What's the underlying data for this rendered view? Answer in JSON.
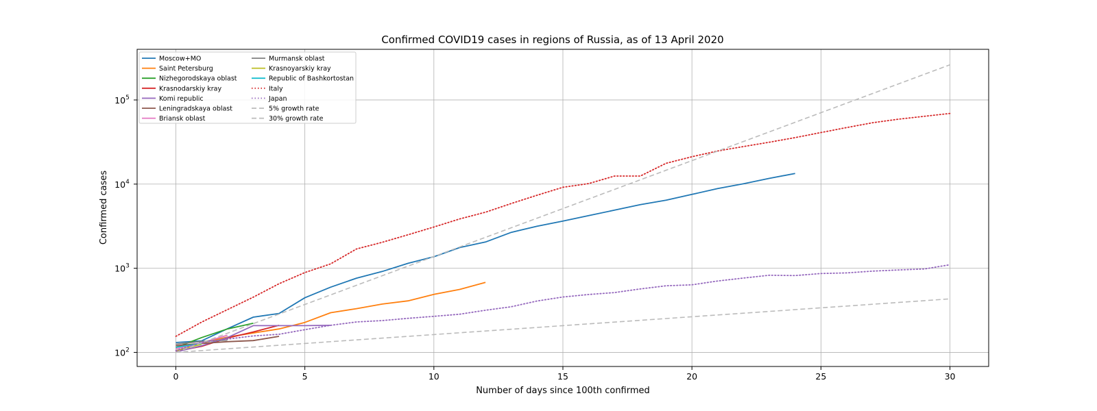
{
  "chart_data": {
    "type": "line",
    "title": "Confirmed COVID19 cases in regions of Russia, as of 13 April 2020",
    "xlabel": "Number of days since 100th confirmed",
    "ylabel": "Confirmed cases",
    "xlim": [
      -1.5,
      31.5
    ],
    "ylim": [
      68,
      400000
    ],
    "yscale": "log",
    "grid": true,
    "legend_position": "top-left",
    "legend_columns": 2,
    "x_ticks": [
      {
        "value": 0,
        "label": "0"
      },
      {
        "value": 5,
        "label": "5"
      },
      {
        "value": 10,
        "label": "10"
      },
      {
        "value": 15,
        "label": "15"
      },
      {
        "value": 20,
        "label": "20"
      },
      {
        "value": 25,
        "label": "25"
      },
      {
        "value": 30,
        "label": "30"
      }
    ],
    "y_ticks": [
      {
        "value": 100,
        "base": "10",
        "exp": "2"
      },
      {
        "value": 1000,
        "base": "10",
        "exp": "3"
      },
      {
        "value": 10000,
        "base": "10",
        "exp": "4"
      },
      {
        "value": 100000,
        "base": "10",
        "exp": "5"
      }
    ],
    "series": [
      {
        "name": "Moscow+MO",
        "color": "#1f77b4",
        "style": "solid",
        "x": [
          0,
          1,
          2,
          3,
          4,
          5,
          6,
          7,
          8,
          9,
          10,
          11,
          12,
          13,
          14,
          15,
          16,
          17,
          18,
          19,
          20,
          21,
          22,
          23,
          24
        ],
        "y": [
          131,
          137,
          191,
          262,
          290,
          446,
          596,
          762,
          916,
          1145,
          1370,
          1760,
          2050,
          2670,
          3160,
          3640,
          4220,
          4900,
          5700,
          6430,
          7540,
          8850,
          10100,
          11700,
          13400
        ]
      },
      {
        "name": "Saint Petersburg",
        "color": "#ff7f0e",
        "style": "solid",
        "x": [
          0,
          1,
          2,
          3,
          4,
          5,
          6,
          7,
          8,
          9,
          10,
          11,
          12
        ],
        "y": [
          102,
          130,
          152,
          170,
          190,
          227,
          296,
          331,
          375,
          410,
          490,
          560,
          680
        ]
      },
      {
        "name": "Nizhegorodskaya oblast",
        "color": "#2ca02c",
        "style": "solid",
        "x": [
          0,
          1,
          2,
          3
        ],
        "y": [
          114,
          150,
          190,
          222
        ]
      },
      {
        "name": "Krasnodarskiy kray",
        "color": "#d62728",
        "style": "solid",
        "x": [
          0,
          1,
          2,
          3,
          4
        ],
        "y": [
          103,
          118,
          148,
          175,
          210
        ]
      },
      {
        "name": "Komi republic",
        "color": "#9467bd",
        "style": "solid",
        "x": [
          0,
          1,
          2,
          3,
          4,
          5,
          6
        ],
        "y": [
          101,
          120,
          150,
          208,
          208,
          208,
          210
        ]
      },
      {
        "name": "Leningradskaya oblast",
        "color": "#8c564b",
        "style": "solid",
        "x": [
          0,
          1,
          2,
          3,
          4
        ],
        "y": [
          120,
          128,
          134,
          138,
          155
        ]
      },
      {
        "name": "Briansk oblast",
        "color": "#e377c2",
        "style": "solid",
        "x": [
          0,
          1,
          2
        ],
        "y": [
          110,
          130,
          160
        ]
      },
      {
        "name": "Murmansk oblast",
        "color": "#7f7f7f",
        "style": "solid",
        "x": [
          0,
          1,
          2
        ],
        "y": [
          125,
          135,
          140
        ]
      },
      {
        "name": "Krasnoyarskiy kray",
        "color": "#bcbd22",
        "style": "solid",
        "x": [
          0,
          1
        ],
        "y": [
          105,
          125
        ]
      },
      {
        "name": "Republic of Bashkortostan",
        "color": "#17becf",
        "style": "solid",
        "x": [
          0,
          1
        ],
        "y": [
          115,
          128
        ]
      },
      {
        "name": "Italy",
        "color": "#d62728",
        "style": "dotted",
        "x": [
          0,
          1,
          2,
          3,
          4,
          5,
          6,
          7,
          8,
          9,
          10,
          11,
          12,
          13,
          14,
          15,
          16,
          17,
          18,
          19,
          20,
          21,
          22,
          23,
          24,
          25,
          26,
          27,
          28,
          29,
          30
        ],
        "y": [
          155,
          229,
          322,
          453,
          655,
          888,
          1128,
          1694,
          2036,
          2502,
          3089,
          3858,
          4636,
          5883,
          7375,
          9172,
          10149,
          12462,
          12462,
          17660,
          21157,
          24747,
          27980,
          31506,
          35713,
          41035,
          47021,
          53578,
          59138,
          63927,
          69176
        ]
      },
      {
        "name": "Japan",
        "color": "#9467bd",
        "style": "dotted",
        "x": [
          0,
          1,
          2,
          3,
          4,
          5,
          6,
          7,
          8,
          9,
          10,
          11,
          12,
          13,
          14,
          15,
          16,
          17,
          18,
          19,
          20,
          21,
          22,
          23,
          24,
          25,
          26,
          27,
          28,
          29,
          30
        ],
        "y": [
          105,
          132,
          144,
          157,
          164,
          186,
          210,
          230,
          239,
          254,
          268,
          284,
          317,
          349,
          408,
          455,
          488,
          514,
          568,
          619,
          635,
          706,
          765,
          826,
          819,
          865,
          880,
          925,
          955,
          980,
          1100
        ]
      },
      {
        "name": "5% growth rate",
        "color": "#bbbbbb",
        "style": "dashed",
        "x": [
          0,
          5,
          10,
          15,
          20,
          25,
          30
        ],
        "y": [
          100,
          127.6,
          162.9,
          207.9,
          265.3,
          338.6,
          432.2
        ]
      },
      {
        "name": "30% growth rate",
        "color": "#bbbbbb",
        "style": "dashed",
        "x": [
          0,
          5,
          10,
          15,
          20,
          25,
          30
        ],
        "y": [
          100,
          371.3,
          1378.6,
          5118.7,
          19005,
          70564,
          262000
        ]
      }
    ]
  }
}
